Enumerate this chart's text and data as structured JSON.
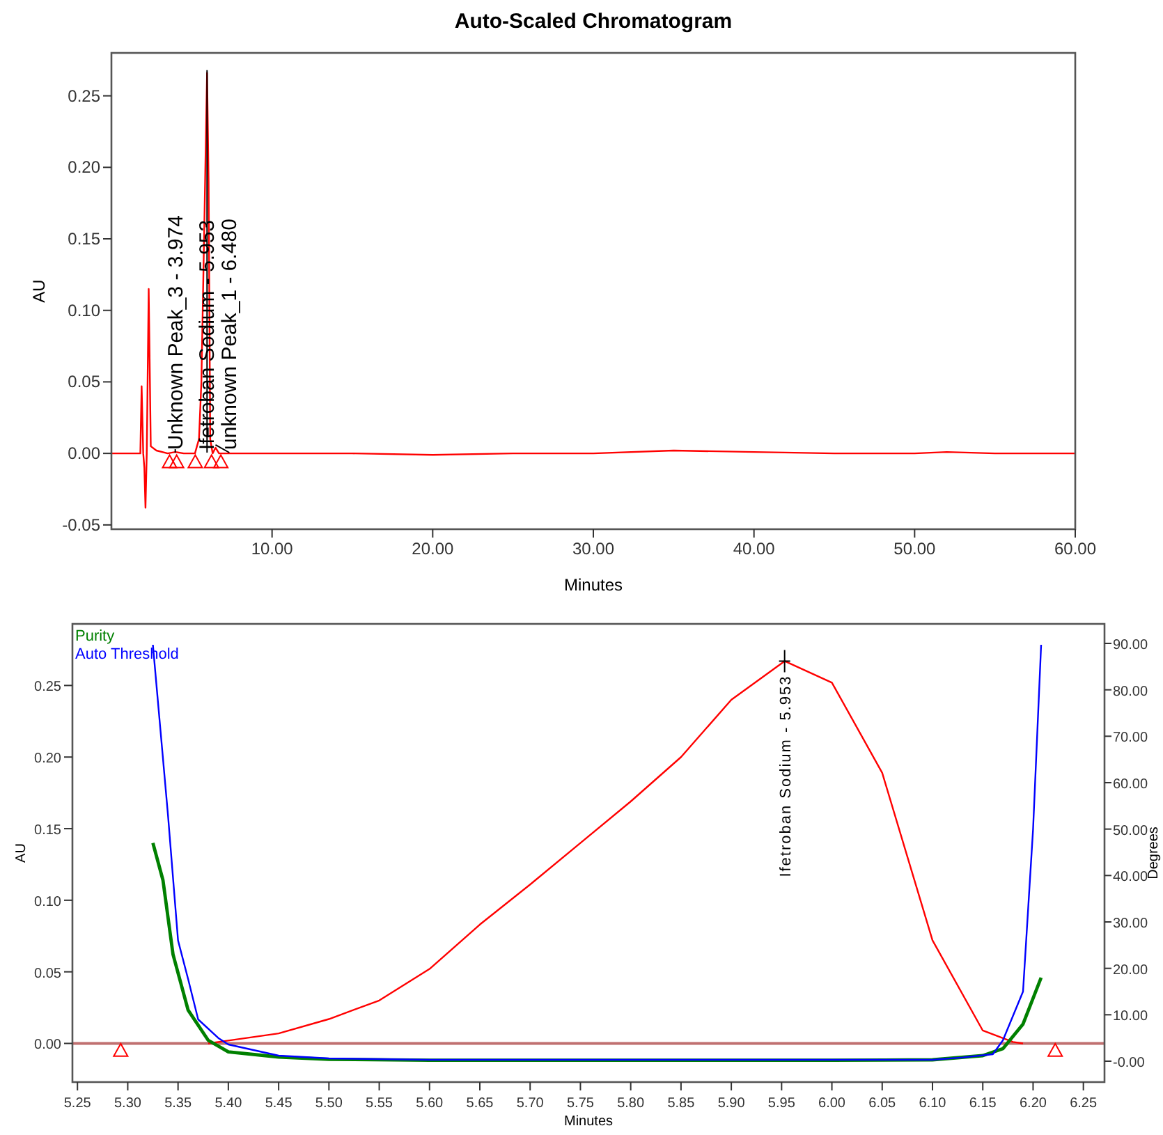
{
  "chart_data": [
    {
      "type": "line",
      "title": "Auto-Scaled Chromatogram",
      "xlabel": "Minutes",
      "ylabel": "AU",
      "xlim": [
        0,
        60
      ],
      "ylim": [
        -0.053,
        0.28
      ],
      "xticks": [
        {
          "value": 10,
          "label": "10.00"
        },
        {
          "value": 20,
          "label": "20.00"
        },
        {
          "value": 30,
          "label": "30.00"
        },
        {
          "value": 40,
          "label": "40.00"
        },
        {
          "value": 50,
          "label": "50.00"
        },
        {
          "value": 60,
          "label": "60.00"
        }
      ],
      "yticks": [
        {
          "value": -0.05,
          "label": "-0.05"
        },
        {
          "value": 0,
          "label": "0.00"
        },
        {
          "value": 0.05,
          "label": "0.05"
        },
        {
          "value": 0.1,
          "label": "0.10"
        },
        {
          "value": 0.15,
          "label": "0.15"
        },
        {
          "value": 0.2,
          "label": "0.20"
        },
        {
          "value": 0.25,
          "label": "0.25"
        }
      ],
      "grid": false,
      "marker": "none",
      "series": [
        {
          "color": "#ff0000",
          "x": [
            0,
            1.8,
            1.88,
            1.98,
            2.05,
            2.12,
            2.2,
            2.32,
            2.45,
            2.8,
            3.5,
            3.974,
            4.5,
            5.2,
            5.45,
            5.6,
            5.8,
            5.953,
            6.05,
            6.15,
            6.3,
            6.48,
            6.7,
            8,
            15,
            20,
            25,
            30,
            35,
            40,
            45,
            50,
            52,
            55,
            60
          ],
          "values": [
            0,
            0,
            0.047,
            0,
            -0.01,
            -0.038,
            0,
            0.115,
            0.005,
            0.002,
            0,
            0.001,
            0,
            0,
            0.01,
            0.05,
            0.17,
            0.266,
            0.19,
            0.01,
            0,
            0.004,
            0,
            0,
            0,
            -0.001,
            0,
            0,
            0.002,
            0.001,
            0,
            0,
            0.001,
            0,
            0
          ]
        },
        {
          "type": "scatter",
          "marker": "triangle",
          "color": "#ff0000",
          "x": [
            3.62,
            4.06,
            5.22,
            6.23,
            6.81
          ],
          "values": [
            -0.006,
            -0.006,
            -0.006,
            -0.006,
            -0.006
          ]
        }
      ],
      "annotations": [
        {
          "text": "Unknown Peak_3 - 3.974",
          "x": 3.974,
          "y": 0.001
        },
        {
          "text": "Ifetroban Sodium - 5.953",
          "x": 5.953,
          "y": 0.266
        },
        {
          "text": "unknown Peak_1 - 6.480",
          "x": 6.48,
          "y": 0.004
        }
      ]
    },
    {
      "type": "line",
      "xlabel": "Minutes",
      "ylabel": "AU",
      "y2label": "Degrees",
      "xlim": [
        5.245,
        6.271
      ],
      "ylim": [
        -0.027,
        0.293
      ],
      "y2lim": [
        -4.5,
        94.2
      ],
      "xticks": [
        {
          "value": 5.25,
          "label": "5.25"
        },
        {
          "value": 5.3,
          "label": "5.30"
        },
        {
          "value": 5.35,
          "label": "5.35"
        },
        {
          "value": 5.4,
          "label": "5.40"
        },
        {
          "value": 5.45,
          "label": "5.45"
        },
        {
          "value": 5.5,
          "label": "5.50"
        },
        {
          "value": 5.55,
          "label": "5.55"
        },
        {
          "value": 5.6,
          "label": "5.60"
        },
        {
          "value": 5.65,
          "label": "5.65"
        },
        {
          "value": 5.7,
          "label": "5.70"
        },
        {
          "value": 5.75,
          "label": "5.75"
        },
        {
          "value": 5.8,
          "label": "5.80"
        },
        {
          "value": 5.85,
          "label": "5.85"
        },
        {
          "value": 5.9,
          "label": "5.90"
        },
        {
          "value": 5.95,
          "label": "5.95"
        },
        {
          "value": 6.0,
          "label": "6.00"
        },
        {
          "value": 6.05,
          "label": "6.05"
        },
        {
          "value": 6.1,
          "label": "6.10"
        },
        {
          "value": 6.15,
          "label": "6.15"
        },
        {
          "value": 6.2,
          "label": "6.20"
        },
        {
          "value": 6.25,
          "label": "6.25"
        }
      ],
      "yticks": [
        {
          "value": 0,
          "label": "0.00"
        },
        {
          "value": 0.05,
          "label": "0.05"
        },
        {
          "value": 0.1,
          "label": "0.10"
        },
        {
          "value": 0.15,
          "label": "0.15"
        },
        {
          "value": 0.2,
          "label": "0.20"
        },
        {
          "value": 0.25,
          "label": "0.25"
        }
      ],
      "y2ticks": [
        {
          "value": 0,
          "label": "-0.00"
        },
        {
          "value": 10,
          "label": "10.00"
        },
        {
          "value": 20,
          "label": "20.00"
        },
        {
          "value": 30,
          "label": "30.00"
        },
        {
          "value": 40,
          "label": "40.00"
        },
        {
          "value": 50,
          "label": "50.00"
        },
        {
          "value": 60,
          "label": "60.00"
        },
        {
          "value": 70,
          "label": "70.00"
        },
        {
          "value": 80,
          "label": "80.00"
        },
        {
          "value": 90,
          "label": "90.00"
        }
      ],
      "grid": false,
      "marker": "none",
      "legend": "top left",
      "ref_lines": [
        {
          "axis": "y",
          "value": 0,
          "color": "#c07070"
        }
      ],
      "series": [
        {
          "color": "#ff0000",
          "x": [
            5.38,
            5.4,
            5.45,
            5.5,
            5.55,
            5.6,
            5.65,
            5.7,
            5.75,
            5.8,
            5.85,
            5.9,
            5.953,
            6.0,
            6.05,
            6.1,
            6.15,
            6.18,
            6.19
          ],
          "values": [
            0,
            0.002,
            0.007,
            0.017,
            0.03,
            0.052,
            0.083,
            0.111,
            0.14,
            0.169,
            0.2,
            0.24,
            0.267,
            0.252,
            0.189,
            0.072,
            0.009,
            0.001,
            0
          ]
        },
        {
          "name": "Purity",
          "color": "#008000",
          "axis": "y2",
          "x": [
            5.325,
            5.335,
            5.345,
            5.36,
            5.38,
            5.4,
            5.45,
            5.5,
            5.6,
            5.8,
            6.0,
            6.1,
            6.15,
            6.17,
            6.19,
            6.208
          ],
          "values": [
            47,
            39,
            23,
            11,
            4.5,
            2,
            0.9,
            0.4,
            0.2,
            0.2,
            0.2,
            0.3,
            1.2,
            2.7,
            8,
            18
          ]
        },
        {
          "name": "Auto Threshold",
          "color": "#0000ff",
          "axis": "y2",
          "x": [
            5.325,
            5.34,
            5.35,
            5.36,
            5.37,
            5.39,
            5.4,
            5.45,
            5.5,
            5.6,
            5.8,
            6.0,
            6.1,
            6.13,
            6.16,
            6.17,
            6.19,
            6.2,
            6.208
          ],
          "values": [
            89.7,
            53,
            26,
            17.7,
            9,
            5,
            3.6,
            1.2,
            0.6,
            0.3,
            0.3,
            0.3,
            0.3,
            0.8,
            1.5,
            4.5,
            15,
            50,
            89.7
          ]
        },
        {
          "type": "scatter",
          "marker": "triangle",
          "color": "#ff0000",
          "x": [
            5.293,
            6.222
          ],
          "values": [
            -0.005,
            -0.005
          ]
        }
      ],
      "annotations": [
        {
          "text": "Ifetroban Sodium - 5.953",
          "x": 5.953,
          "y": 0.267
        }
      ]
    }
  ]
}
